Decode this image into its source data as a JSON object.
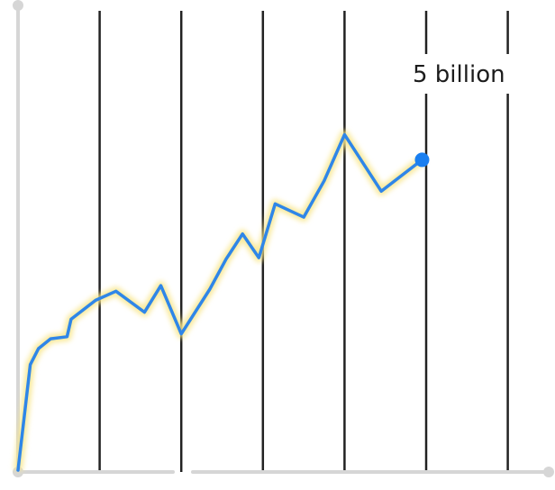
{
  "chart_data": {
    "type": "line",
    "title": "",
    "xlabel": "",
    "ylabel": "",
    "xlim": [
      0,
      50
    ],
    "ylim": [
      0,
      5.85
    ],
    "grid": true,
    "vertical_gridlines_at": [
      10,
      20,
      30,
      40,
      50,
      60
    ],
    "series": [
      {
        "values": [
          [
            0.0,
            0.0
          ],
          [
            1.5,
            1.51
          ],
          [
            2.5,
            1.74
          ],
          [
            4.0,
            1.88
          ],
          [
            6.0,
            1.91
          ],
          [
            6.5,
            2.16
          ],
          [
            9.5,
            2.43
          ],
          [
            12.0,
            2.56
          ],
          [
            15.5,
            2.26
          ],
          [
            17.5,
            2.64
          ],
          [
            20.0,
            1.95
          ],
          [
            23.5,
            2.59
          ],
          [
            25.5,
            3.02
          ],
          [
            27.5,
            3.38
          ],
          [
            29.5,
            3.04
          ],
          [
            31.5,
            3.81
          ],
          [
            35.0,
            3.62
          ],
          [
            37.5,
            4.14
          ],
          [
            40.0,
            4.8
          ],
          [
            44.5,
            3.99
          ],
          [
            49.5,
            4.44
          ]
        ],
        "color": "#2f86e8"
      }
    ],
    "highlight_point": {
      "x": 49.5,
      "y": 4.44,
      "label": "5 billion",
      "color": "#1a7ff0"
    }
  },
  "colors": {
    "line": "#2f86e8",
    "glow": "#f8e68a",
    "gridline": "#222222",
    "axis": "#d6d6d6",
    "highlight": "#1a7ff0"
  }
}
